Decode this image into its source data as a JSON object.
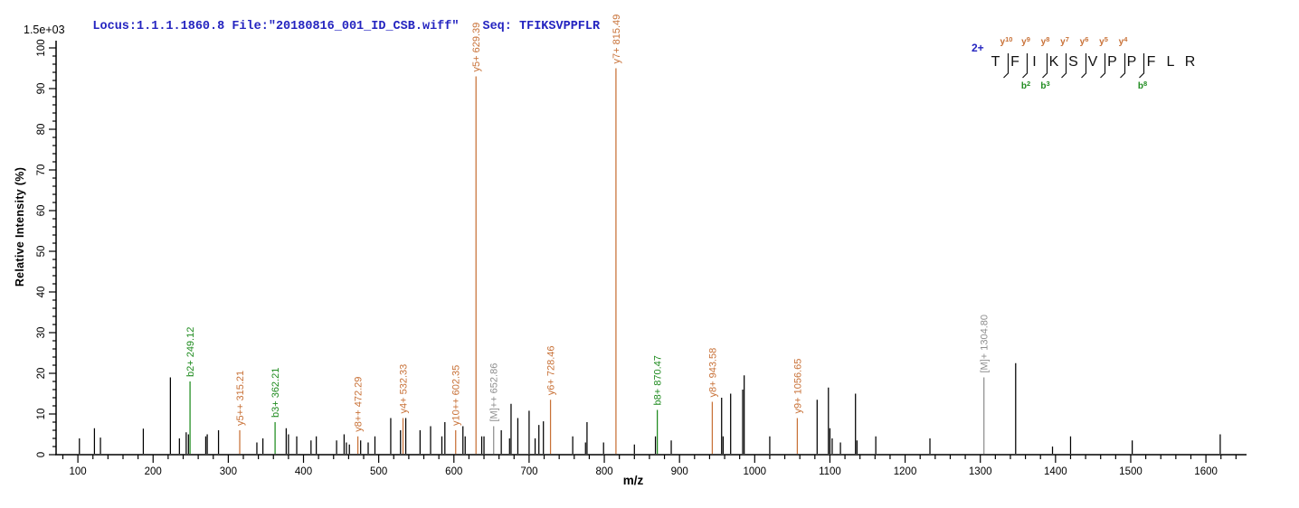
{
  "header": {
    "locus": "Locus:1.1.1.1860.8 File:\"20180816_001_ID_CSB.wiff\"",
    "seq": "Seq: TFIKSVPPFLR"
  },
  "y_axis": {
    "title": "Relative  Intensity (%)",
    "scale_note": "1.5e+03",
    "max": 100,
    "major_step": 10,
    "minor_step": 2
  },
  "x_axis": {
    "title": "m/z",
    "label_min": 100,
    "label_max": 1600,
    "major_step": 100,
    "minor_step": 20,
    "range_min": 71,
    "range_max": 1654
  },
  "peptide": {
    "charge": "2+",
    "residues": [
      "T",
      "F",
      "I",
      "K",
      "S",
      "V",
      "P",
      "P",
      "F",
      "L",
      "R"
    ],
    "y_ions": [
      {
        "letter": "y",
        "num": "10",
        "gap": 1
      },
      {
        "letter": "y",
        "num": "9",
        "gap": 2
      },
      {
        "letter": "y",
        "num": "8",
        "gap": 3
      },
      {
        "letter": "y",
        "num": "7",
        "gap": 4
      },
      {
        "letter": "y",
        "num": "6",
        "gap": 5
      },
      {
        "letter": "y",
        "num": "5",
        "gap": 6
      },
      {
        "letter": "y",
        "num": "4",
        "gap": 7
      }
    ],
    "b_ions": [
      {
        "letter": "b",
        "num": "2",
        "gap": 2
      },
      {
        "letter": "b",
        "num": "3",
        "gap": 3
      },
      {
        "letter": "b",
        "num": "8",
        "gap": 8
      }
    ]
  },
  "colors": {
    "y_ion": "#c87137",
    "b_ion": "#1e8b1e",
    "precursor": "#8f8f8f",
    "peak": "#000000",
    "header_text": "#2424c0",
    "charge_text": "#2424c0"
  },
  "chart_data": {
    "type": "bar",
    "title": "MS/MS spectrum of TFIKSVPPFLR (2+)",
    "xlabel": "m/z",
    "ylabel": "Relative  Intensity (%)",
    "x_range": [
      71,
      1654
    ],
    "y_range": [
      0,
      100
    ],
    "grid": false,
    "peaks": [
      {
        "mz": 102,
        "i": 4
      },
      {
        "mz": 122,
        "i": 6.5
      },
      {
        "mz": 130,
        "i": 4.2
      },
      {
        "mz": 187,
        "i": 6.4
      },
      {
        "mz": 223,
        "i": 19
      },
      {
        "mz": 235,
        "i": 4
      },
      {
        "mz": 244,
        "i": 5.5
      },
      {
        "mz": 247,
        "i": 5
      },
      {
        "mz": 249.12,
        "i": 18,
        "label": "b2+ 249.12",
        "ion": "b"
      },
      {
        "mz": 270,
        "i": 4.5
      },
      {
        "mz": 272,
        "i": 5
      },
      {
        "mz": 287,
        "i": 6
      },
      {
        "mz": 315.21,
        "i": 6,
        "label": "y5++ 315.21",
        "ion": "y"
      },
      {
        "mz": 338,
        "i": 3
      },
      {
        "mz": 346,
        "i": 4
      },
      {
        "mz": 362.21,
        "i": 8,
        "label": "b3+ 362.21",
        "ion": "b"
      },
      {
        "mz": 377,
        "i": 6.5
      },
      {
        "mz": 380,
        "i": 5
      },
      {
        "mz": 391,
        "i": 4.5
      },
      {
        "mz": 410,
        "i": 3.5
      },
      {
        "mz": 417,
        "i": 4.5
      },
      {
        "mz": 444,
        "i": 3.5
      },
      {
        "mz": 454,
        "i": 5
      },
      {
        "mz": 457,
        "i": 3
      },
      {
        "mz": 461,
        "i": 2.5
      },
      {
        "mz": 472.29,
        "i": 4.5,
        "label": "y8++ 472.29",
        "ion": "y"
      },
      {
        "mz": 476,
        "i": 3.5
      },
      {
        "mz": 486,
        "i": 3
      },
      {
        "mz": 495,
        "i": 4.5
      },
      {
        "mz": 516,
        "i": 9
      },
      {
        "mz": 529,
        "i": 6
      },
      {
        "mz": 532.33,
        "i": 9,
        "label": "y4+ 532.33",
        "ion": "y"
      },
      {
        "mz": 536,
        "i": 9
      },
      {
        "mz": 555,
        "i": 6
      },
      {
        "mz": 569,
        "i": 7
      },
      {
        "mz": 584,
        "i": 4.5
      },
      {
        "mz": 588,
        "i": 8
      },
      {
        "mz": 602.35,
        "i": 6,
        "label": "y10++ 602.35",
        "ion": "y"
      },
      {
        "mz": 612,
        "i": 7
      },
      {
        "mz": 615,
        "i": 4.5
      },
      {
        "mz": 629.39,
        "i": 93,
        "label": "y5+ 629.39",
        "ion": "y"
      },
      {
        "mz": 637,
        "i": 4.5
      },
      {
        "mz": 640,
        "i": 4.5
      },
      {
        "mz": 652.86,
        "i": 7,
        "label": "[M]++ 652.86",
        "ion": "M"
      },
      {
        "mz": 663,
        "i": 6
      },
      {
        "mz": 674,
        "i": 4
      },
      {
        "mz": 676,
        "i": 12.5
      },
      {
        "mz": 685,
        "i": 9
      },
      {
        "mz": 700,
        "i": 10.8
      },
      {
        "mz": 708,
        "i": 4
      },
      {
        "mz": 713,
        "i": 7.3
      },
      {
        "mz": 719,
        "i": 8.2
      },
      {
        "mz": 728.46,
        "i": 13.5,
        "label": "y6+ 728.46",
        "ion": "y"
      },
      {
        "mz": 758,
        "i": 4.5
      },
      {
        "mz": 775,
        "i": 3
      },
      {
        "mz": 777,
        "i": 8
      },
      {
        "mz": 799,
        "i": 3
      },
      {
        "mz": 815.49,
        "i": 95,
        "label": "y7+ 815.49",
        "ion": "y"
      },
      {
        "mz": 840,
        "i": 2.5
      },
      {
        "mz": 868,
        "i": 4.5
      },
      {
        "mz": 870.47,
        "i": 11,
        "label": "b8+ 870.47",
        "ion": "b"
      },
      {
        "mz": 889,
        "i": 3.5
      },
      {
        "mz": 943.58,
        "i": 13,
        "label": "y8+ 943.58",
        "ion": "y"
      },
      {
        "mz": 956,
        "i": 14
      },
      {
        "mz": 958,
        "i": 4.5
      },
      {
        "mz": 968,
        "i": 15
      },
      {
        "mz": 984,
        "i": 16
      },
      {
        "mz": 986,
        "i": 19.5
      },
      {
        "mz": 1020,
        "i": 4.5
      },
      {
        "mz": 1056.65,
        "i": 9,
        "label": "y9+ 1056.65",
        "ion": "y"
      },
      {
        "mz": 1083,
        "i": 13.5
      },
      {
        "mz": 1098,
        "i": 16.5
      },
      {
        "mz": 1100,
        "i": 6.5
      },
      {
        "mz": 1103,
        "i": 4
      },
      {
        "mz": 1114,
        "i": 3
      },
      {
        "mz": 1134,
        "i": 15
      },
      {
        "mz": 1136,
        "i": 3.5
      },
      {
        "mz": 1161,
        "i": 4.5
      },
      {
        "mz": 1233,
        "i": 4
      },
      {
        "mz": 1304.8,
        "i": 19,
        "label": "[M]+ 1304.80",
        "ion": "M"
      },
      {
        "mz": 1347,
        "i": 22.5
      },
      {
        "mz": 1396,
        "i": 2
      },
      {
        "mz": 1420,
        "i": 4.5
      },
      {
        "mz": 1502,
        "i": 3.5
      },
      {
        "mz": 1619,
        "i": 5
      }
    ]
  }
}
